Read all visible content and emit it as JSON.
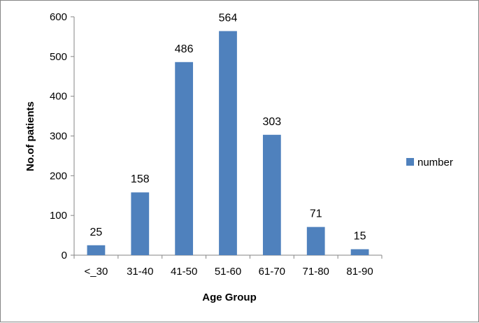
{
  "chart_data": {
    "type": "bar",
    "categories": [
      "<_30",
      "31-40",
      "41-50",
      "51-60",
      "61-70",
      "71-80",
      "81-90"
    ],
    "series": [
      {
        "name": "number",
        "values": [
          25,
          158,
          486,
          564,
          303,
          71,
          15
        ],
        "color": "#4f81bd"
      }
    ],
    "xlabel": "Age Group",
    "ylabel": "No.of patients",
    "ylim": [
      0,
      600
    ],
    "yticks": [
      0,
      100,
      200,
      300,
      400,
      500,
      600
    ],
    "grid": false,
    "legend_position": "right",
    "data_labels": true
  }
}
